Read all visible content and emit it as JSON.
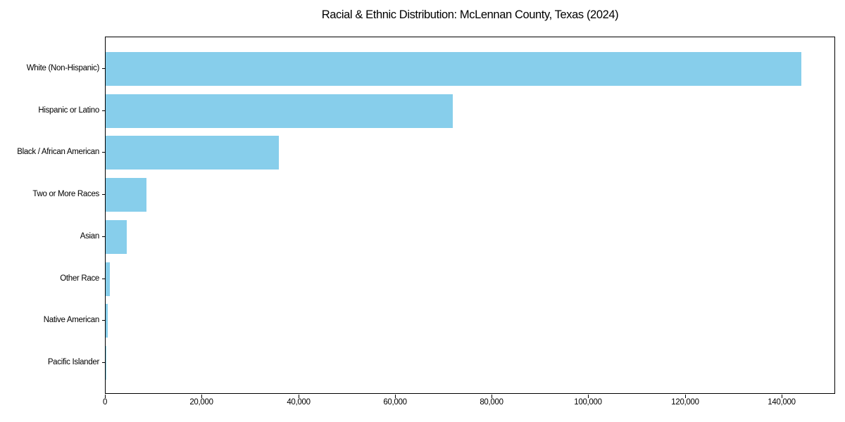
{
  "title": "Racial & Ethnic Distribution: McLennan County, Texas (2024)",
  "chart_data": {
    "type": "bar",
    "orientation": "horizontal",
    "title": "Racial & Ethnic Distribution: McLennan County, Texas (2024)",
    "categories": [
      "White (Non-Hispanic)",
      "Hispanic or Latino",
      "Black / African American",
      "Two or More Races",
      "Asian",
      "Other Race",
      "Native American",
      "Pacific Islander"
    ],
    "values": [
      143900,
      71800,
      35900,
      8500,
      4400,
      900,
      500,
      150
    ],
    "xlabel": "",
    "ylabel": "",
    "xlim": [
      0,
      151100
    ],
    "xticks": [
      0,
      20000,
      40000,
      60000,
      80000,
      100000,
      120000,
      140000
    ],
    "xtick_labels": [
      "0",
      "20,000",
      "40,000",
      "60,000",
      "80,000",
      "100,000",
      "120,000",
      "140,000"
    ],
    "bar_color": "#87CEEB",
    "background_color": "#FFFFFF",
    "spine_color": "#000000",
    "text_color": "#000000",
    "grid": false,
    "legend": null
  }
}
